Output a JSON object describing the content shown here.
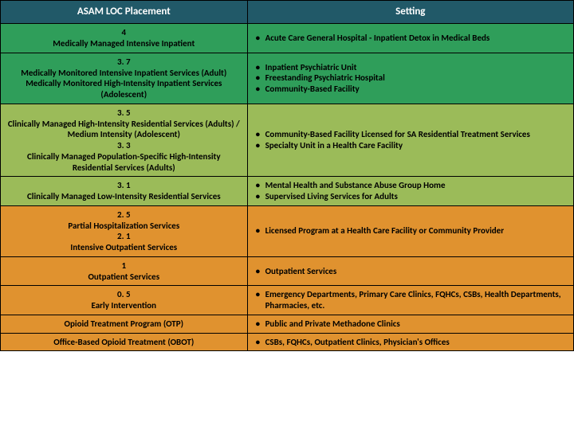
{
  "header": {
    "left": "ASAM LOC Placement",
    "right": "Setting"
  },
  "rows": [
    {
      "bg": "bg-green",
      "left": [
        "4",
        "Medically Managed Intensive Inpatient"
      ],
      "settings": [
        "Acute Care General Hospital  - Inpatient Detox in Medical Beds"
      ]
    },
    {
      "bg": "bg-green",
      "left": [
        "3. 7",
        "Medically Monitored Intensive Inpatient Services (Adult)",
        "Medically Monitored High-Intensity Inpatient Services (Adolescent)"
      ],
      "settings": [
        "Inpatient Psychiatric Unit",
        "Freestanding Psychiatric Hospital",
        "Community-Based Facility"
      ]
    },
    {
      "bg": "bg-olive",
      "left": [
        "3. 5",
        "Clinically Managed  High-Intensity Residential Services (Adults) / Medium Intensity (Adolescent)",
        "3. 3",
        "Clinically Managed Population-Specific High-Intensity Residential Services (Adults)"
      ],
      "settings": [
        "Community-Based Facility Licensed for SA Residential Treatment Services",
        "Specialty Unit in a Health Care Facility"
      ]
    },
    {
      "bg": "bg-olive",
      "left": [
        "3. 1",
        "Clinically Managed Low-Intensity Residential Services"
      ],
      "settings": [
        "Mental Health and Substance Abuse Group Home",
        "Supervised Living Services for Adults"
      ]
    },
    {
      "bg": "bg-orange",
      "left": [
        "2. 5",
        "Partial Hospitalization Services",
        "2. 1",
        "Intensive Outpatient Services"
      ],
      "settings": [
        "Licensed Program at a Health Care Facility or Community Provider"
      ]
    },
    {
      "bg": "bg-orange",
      "left": [
        "1",
        "Outpatient Services"
      ],
      "settings": [
        "Outpatient Services"
      ]
    },
    {
      "bg": "bg-orange",
      "left": [
        "0. 5",
        "Early Intervention"
      ],
      "settings": [
        "Emergency Departments, Primary Care Clinics,  FQHCs, CSBs, Health Departments, Pharmacies, etc."
      ]
    },
    {
      "bg": "bg-orange",
      "left": [
        "Opioid Treatment Program (OTP)"
      ],
      "settings": [
        "Public and Private Methadone Clinics"
      ]
    },
    {
      "bg": "bg-orange",
      "left": [
        "Office-Based Opioid Treatment (OBOT)"
      ],
      "settings": [
        "CSBs, FQHCs, Outpatient Clinics, Physician's Offices"
      ]
    }
  ]
}
